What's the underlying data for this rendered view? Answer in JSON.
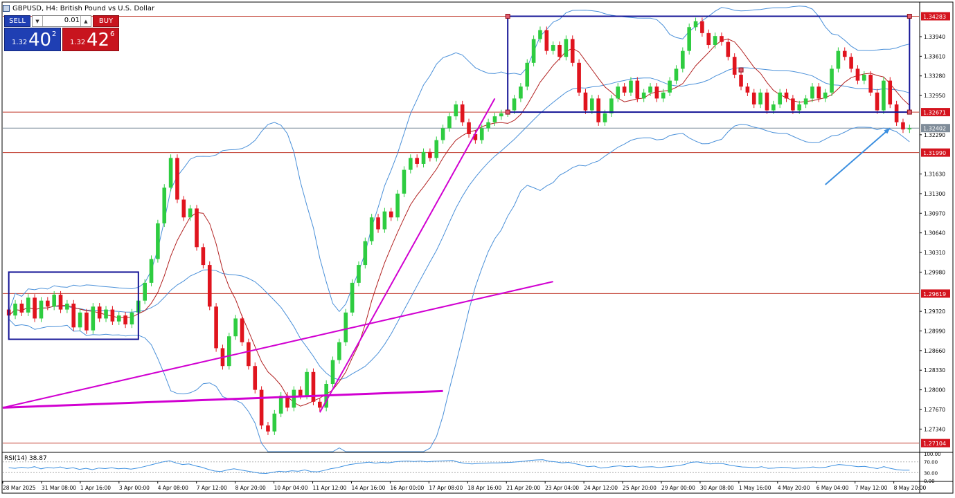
{
  "window": {
    "title": "GBPUSD, H4:  British Pound vs U.S. Dollar"
  },
  "trade_panel": {
    "sell_label": "SELL",
    "buy_label": "BUY",
    "lot_value": "0.01",
    "sell_price": {
      "prefix": "1.32",
      "big": "40",
      "sup": "2"
    },
    "buy_price": {
      "prefix": "1.32",
      "big": "42",
      "sup": "6"
    }
  },
  "colors": {
    "bull": "#2ecc40",
    "bear": "#e0141e",
    "bollinger": "#4a90d9",
    "ma": "#b22222",
    "trendline": "#d100d1",
    "box": "#141496",
    "level": "#c0392b",
    "arrow": "#3b8fe0",
    "rsi": "#3b8fe0"
  },
  "chart_data": {
    "type": "candlestick",
    "symbol": "GBPUSD",
    "timeframe": "H4",
    "ylim": [
      1.2696,
      1.3451
    ],
    "y_ticks": [
      "1.33940",
      "1.33610",
      "1.33280",
      "1.32950",
      "1.32290",
      "1.31630",
      "1.31300",
      "1.30970",
      "1.30640",
      "1.30310",
      "1.29980",
      "1.29320",
      "1.28990",
      "1.28660",
      "1.28330",
      "1.28000",
      "1.27670",
      "1.27340"
    ],
    "x_ticks": [
      "28 Mar 2025",
      "31 Mar 08:00",
      "1 Apr 16:00",
      "3 Apr 00:00",
      "4 Apr 08:00",
      "7 Apr 12:00",
      "8 Apr 20:00",
      "10 Apr 04:00",
      "11 Apr 12:00",
      "14 Apr 16:00",
      "16 Apr 00:00",
      "17 Apr 08:00",
      "18 Apr 16:00",
      "21 Apr 20:00",
      "23 Apr 04:00",
      "24 Apr 12:00",
      "25 Apr 20:00",
      "29 Apr 00:00",
      "30 Apr 08:00",
      "1 May 16:00",
      "4 May 20:00",
      "6 May 04:00",
      "7 May 12:00",
      "8 May 20:00"
    ],
    "levels": [
      {
        "price": 1.34283,
        "label": "1.34283"
      },
      {
        "price": 1.32671,
        "label": "1.32671"
      },
      {
        "price": 1.3199,
        "label": "1.31990"
      },
      {
        "price": 1.29619,
        "label": "1.29619"
      },
      {
        "price": 1.27104,
        "label": "1.27104"
      }
    ],
    "current_price": {
      "price": 1.32402,
      "label": "1.32402"
    },
    "candles": [
      [
        1.2935,
        1.2925
      ],
      [
        1.2925,
        1.2945
      ],
      [
        1.2945,
        1.293
      ],
      [
        1.293,
        1.2955
      ],
      [
        1.2955,
        1.292
      ],
      [
        1.292,
        1.295
      ],
      [
        1.295,
        1.294
      ],
      [
        1.294,
        1.296
      ],
      [
        1.296,
        1.2935
      ],
      [
        1.2935,
        1.2945
      ],
      [
        1.2945,
        1.2905
      ],
      [
        1.2905,
        1.293
      ],
      [
        1.293,
        1.29
      ],
      [
        1.29,
        1.294
      ],
      [
        1.294,
        1.292
      ],
      [
        1.292,
        1.2935
      ],
      [
        1.2935,
        1.2915
      ],
      [
        1.2915,
        1.2925
      ],
      [
        1.2925,
        1.291
      ],
      [
        1.291,
        1.293
      ],
      [
        1.293,
        1.295
      ],
      [
        1.295,
        1.298
      ],
      [
        1.298,
        1.302
      ],
      [
        1.302,
        1.308
      ],
      [
        1.308,
        1.314
      ],
      [
        1.314,
        1.319
      ],
      [
        1.319,
        1.312
      ],
      [
        1.312,
        1.309
      ],
      [
        1.309,
        1.3105
      ],
      [
        1.3105,
        1.304
      ],
      [
        1.304,
        1.301
      ],
      [
        1.301,
        1.294
      ],
      [
        1.294,
        1.287
      ],
      [
        1.287,
        1.284
      ],
      [
        1.284,
        1.289
      ],
      [
        1.289,
        1.292
      ],
      [
        1.292,
        1.288
      ],
      [
        1.288,
        1.284
      ],
      [
        1.284,
        1.28
      ],
      [
        1.28,
        1.274
      ],
      [
        1.274,
        1.273
      ],
      [
        1.273,
        1.276
      ],
      [
        1.276,
        1.279
      ],
      [
        1.279,
        1.277
      ],
      [
        1.277,
        1.28
      ],
      [
        1.28,
        1.279
      ],
      [
        1.279,
        1.283
      ],
      [
        1.283,
        1.278
      ],
      [
        1.278,
        1.277
      ],
      [
        1.277,
        1.281
      ],
      [
        1.281,
        1.285
      ],
      [
        1.285,
        1.288
      ],
      [
        1.288,
        1.293
      ],
      [
        1.293,
        1.298
      ],
      [
        1.298,
        1.301
      ],
      [
        1.301,
        1.305
      ],
      [
        1.305,
        1.309
      ],
      [
        1.309,
        1.307
      ],
      [
        1.307,
        1.31
      ],
      [
        1.31,
        1.309
      ],
      [
        1.309,
        1.313
      ],
      [
        1.313,
        1.317
      ],
      [
        1.317,
        1.319
      ],
      [
        1.319,
        1.318
      ],
      [
        1.318,
        1.32
      ],
      [
        1.32,
        1.319
      ],
      [
        1.319,
        1.322
      ],
      [
        1.322,
        1.324
      ],
      [
        1.324,
        1.326
      ],
      [
        1.326,
        1.328
      ],
      [
        1.328,
        1.325
      ],
      [
        1.325,
        1.323
      ],
      [
        1.323,
        1.322
      ],
      [
        1.322,
        1.324
      ],
      [
        1.324,
        1.325
      ],
      [
        1.325,
        1.326
      ],
      [
        1.326,
        1.3265
      ],
      [
        1.3265,
        1.327
      ],
      [
        1.327,
        1.329
      ],
      [
        1.329,
        1.331
      ],
      [
        1.331,
        1.335
      ],
      [
        1.335,
        1.339
      ],
      [
        1.339,
        1.3405
      ],
      [
        1.3405,
        1.337
      ],
      [
        1.337,
        1.338
      ],
      [
        1.338,
        1.336
      ],
      [
        1.336,
        1.339
      ],
      [
        1.339,
        1.335
      ],
      [
        1.335,
        1.33
      ],
      [
        1.33,
        1.327
      ],
      [
        1.327,
        1.329
      ],
      [
        1.329,
        1.325
      ],
      [
        1.325,
        1.3265
      ],
      [
        1.3265,
        1.329
      ],
      [
        1.329,
        1.331
      ],
      [
        1.331,
        1.33
      ],
      [
        1.33,
        1.332
      ],
      [
        1.332,
        1.329
      ],
      [
        1.329,
        1.33
      ],
      [
        1.33,
        1.331
      ],
      [
        1.331,
        1.329
      ],
      [
        1.329,
        1.33
      ],
      [
        1.33,
        1.332
      ],
      [
        1.332,
        1.334
      ],
      [
        1.334,
        1.337
      ],
      [
        1.337,
        1.341
      ],
      [
        1.341,
        1.342
      ],
      [
        1.342,
        1.34
      ],
      [
        1.34,
        1.338
      ],
      [
        1.338,
        1.3395
      ],
      [
        1.3395,
        1.3385
      ],
      [
        1.3385,
        1.336
      ],
      [
        1.336,
        1.333
      ],
      [
        1.333,
        1.331
      ],
      [
        1.331,
        1.33
      ],
      [
        1.33,
        1.328
      ],
      [
        1.328,
        1.33
      ],
      [
        1.33,
        1.327
      ],
      [
        1.327,
        1.328
      ],
      [
        1.328,
        1.33
      ],
      [
        1.33,
        1.329
      ],
      [
        1.329,
        1.327
      ],
      [
        1.327,
        1.328
      ],
      [
        1.328,
        1.329
      ],
      [
        1.329,
        1.331
      ],
      [
        1.331,
        1.329
      ],
      [
        1.329,
        1.33
      ],
      [
        1.33,
        1.334
      ],
      [
        1.334,
        1.337
      ],
      [
        1.337,
        1.336
      ],
      [
        1.336,
        1.334
      ],
      [
        1.334,
        1.332
      ],
      [
        1.332,
        1.333
      ],
      [
        1.333,
        1.33
      ],
      [
        1.33,
        1.327
      ],
      [
        1.327,
        1.332
      ],
      [
        1.332,
        1.328
      ],
      [
        1.328,
        1.325
      ],
      [
        1.325,
        1.3238
      ],
      [
        1.3238,
        1.324
      ]
    ],
    "rsi": {
      "label": "RSI(14) 38.87",
      "value": 38.87,
      "levels": [
        100,
        70,
        30,
        0
      ],
      "level_labels": [
        "100.00",
        "70.00",
        "30.00",
        "0.00"
      ],
      "values": [
        48,
        46,
        50,
        47,
        52,
        44,
        49,
        47,
        51,
        45,
        48,
        42,
        46,
        41,
        47,
        45,
        48,
        44,
        46,
        43,
        47,
        52,
        58,
        64,
        70,
        74,
        66,
        60,
        62,
        55,
        50,
        42,
        36,
        34,
        40,
        44,
        40,
        36,
        32,
        28,
        27,
        31,
        35,
        33,
        37,
        35,
        40,
        34,
        33,
        38,
        44,
        48,
        54,
        60,
        63,
        66,
        69,
        65,
        68,
        66,
        70,
        72,
        73,
        71,
        73,
        70,
        72,
        73,
        74,
        75,
        68,
        64,
        62,
        64,
        65,
        66,
        66,
        67,
        68,
        70,
        72,
        75,
        77,
        78,
        72,
        70,
        66,
        68,
        63,
        58,
        52,
        54,
        47,
        49,
        53,
        55,
        52,
        54,
        50,
        51,
        52,
        49,
        51,
        53,
        56,
        60,
        68,
        70,
        66,
        62,
        64,
        63,
        58,
        54,
        51,
        50,
        48,
        52,
        46,
        47,
        50,
        49,
        46,
        47,
        48,
        51,
        48,
        50,
        56,
        60,
        58,
        55,
        52,
        53,
        49,
        45,
        52,
        46,
        41,
        39,
        38.87
      ]
    }
  }
}
